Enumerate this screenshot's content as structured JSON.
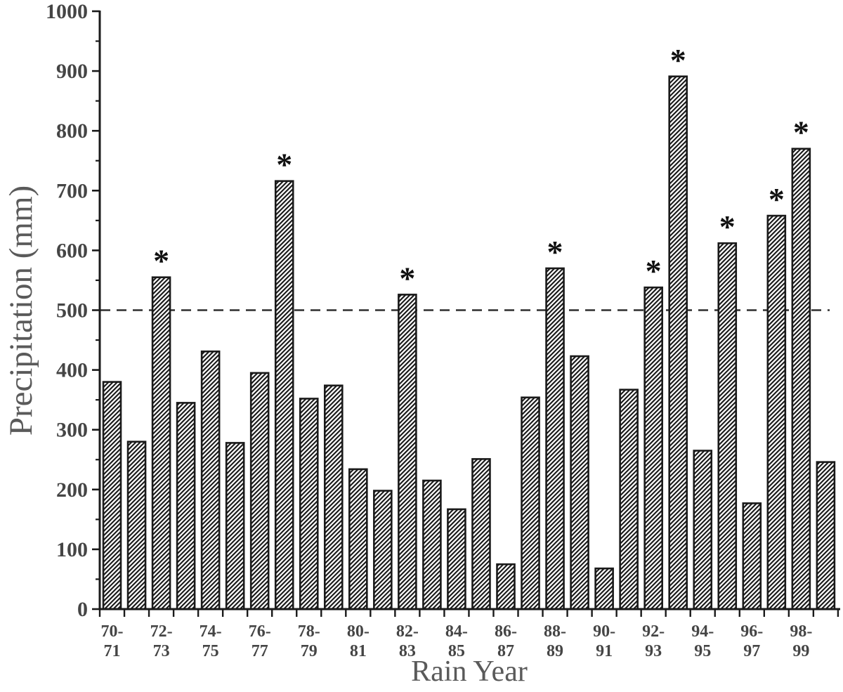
{
  "chart_data": {
    "type": "bar",
    "title": "",
    "xlabel": "Rain Year",
    "ylabel": "Precipitation (mm)",
    "ylim": [
      0,
      1000
    ],
    "y_tick_labels": [
      "0",
      "100",
      "200",
      "300",
      "400",
      "500",
      "600",
      "700",
      "800",
      "900",
      "1000"
    ],
    "y_major_step": 100,
    "y_minor_step": 50,
    "grid": false,
    "legend": "none",
    "bar_fill_style": "diagonal-hatch",
    "reference_line_value": 500,
    "reference_line_style": "dashed",
    "marker": "*",
    "marker_meaning_position": "above-bar",
    "x_tick_labels": [
      [
        "70-",
        "71"
      ],
      [
        "72-",
        "73"
      ],
      [
        "74-",
        "75"
      ],
      [
        "76-",
        "77"
      ],
      [
        "78-",
        "79"
      ],
      [
        "80-",
        "81"
      ],
      [
        "82-",
        "83"
      ],
      [
        "84-",
        "85"
      ],
      [
        "86-",
        "87"
      ],
      [
        "88-",
        "89"
      ],
      [
        "90-",
        "91"
      ],
      [
        "92-",
        "93"
      ],
      [
        "94-",
        "95"
      ],
      [
        "96-",
        "97"
      ],
      [
        "98-",
        "99"
      ]
    ],
    "bars": [
      {
        "value": 380,
        "starred": false
      },
      {
        "value": 280,
        "starred": false
      },
      {
        "value": 555,
        "starred": true
      },
      {
        "value": 345,
        "starred": false
      },
      {
        "value": 431,
        "starred": false
      },
      {
        "value": 278,
        "starred": false
      },
      {
        "value": 395,
        "starred": false
      },
      {
        "value": 716,
        "starred": true
      },
      {
        "value": 352,
        "starred": false
      },
      {
        "value": 374,
        "starred": false
      },
      {
        "value": 234,
        "starred": false
      },
      {
        "value": 198,
        "starred": false
      },
      {
        "value": 526,
        "starred": true
      },
      {
        "value": 215,
        "starred": false
      },
      {
        "value": 167,
        "starred": false
      },
      {
        "value": 251,
        "starred": false
      },
      {
        "value": 75,
        "starred": false
      },
      {
        "value": 354,
        "starred": false
      },
      {
        "value": 570,
        "starred": true
      },
      {
        "value": 423,
        "starred": false
      },
      {
        "value": 68,
        "starred": false
      },
      {
        "value": 367,
        "starred": false
      },
      {
        "value": 538,
        "starred": true
      },
      {
        "value": 891,
        "starred": true
      },
      {
        "value": 265,
        "starred": false
      },
      {
        "value": 612,
        "starred": true
      },
      {
        "value": 177,
        "starred": false
      },
      {
        "value": 658,
        "starred": true
      },
      {
        "value": 770,
        "starred": true
      },
      {
        "value": 246,
        "starred": false
      }
    ],
    "colors": {
      "axis": "#1a1a1a",
      "hatch": "#151515",
      "tick_label": "#454545",
      "axis_title": "#5a5a5a",
      "reference_line": "#2e2e2e",
      "marker": "#111111",
      "background": "#ffffff"
    }
  }
}
